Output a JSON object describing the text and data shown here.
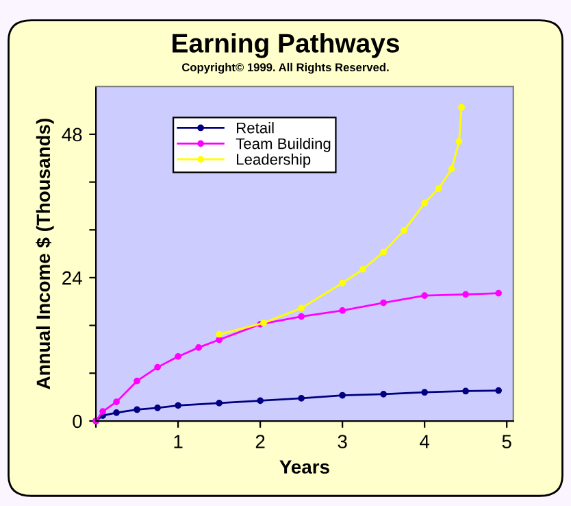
{
  "chart_data": {
    "type": "line",
    "title": "Earning Pathways",
    "annotations": [
      "Copyright© 1999. All Rights Reserved."
    ],
    "xlabel": "Years",
    "ylabel": "Annual Income $ (Thousands)",
    "xlim": [
      0,
      5.08
    ],
    "xticks": [
      {
        "value": 0,
        "label": null
      },
      1,
      2,
      3,
      4,
      5
    ],
    "ylim": [
      0,
      56
    ],
    "yticks": [
      0,
      {
        "value": 8,
        "label": null
      },
      {
        "value": 16,
        "label": null
      },
      24,
      {
        "value": 32,
        "label": null
      },
      {
        "value": 40,
        "label": null
      },
      48
    ],
    "grid": false,
    "legend": "top",
    "marker": "circle",
    "series": [
      {
        "name": "Retail",
        "color": "#000080",
        "x": [
          0,
          0.083,
          0.25,
          0.5,
          0.75,
          1,
          1.5,
          2,
          2.5,
          3,
          3.5,
          4,
          4.5,
          4.9
        ],
        "values": [
          0,
          0.9,
          1.4,
          1.9,
          2.2,
          2.6,
          3.0,
          3.4,
          3.8,
          4.3,
          4.5,
          4.8,
          5.0,
          5.1
        ]
      },
      {
        "name": "Team Building",
        "color": "#ff00ff",
        "x": [
          0,
          0.083,
          0.25,
          0.5,
          0.75,
          1,
          1.25,
          1.5,
          2,
          2.5,
          3,
          3.5,
          4,
          4.5,
          4.9
        ],
        "values": [
          0,
          1.6,
          3.2,
          6.7,
          9.0,
          10.8,
          12.3,
          13.6,
          16.2,
          17.5,
          18.5,
          19.8,
          21.0,
          21.2,
          21.4
        ]
      },
      {
        "name": "Leadership",
        "color": "#ffff00",
        "x": [
          1.5,
          2.04,
          2.5,
          3,
          3.25,
          3.5,
          3.75,
          4,
          4.17,
          4.33,
          4.42,
          4.45
        ],
        "values": [
          14.5,
          16.4,
          18.9,
          23.1,
          25.4,
          28.3,
          31.9,
          36.5,
          38.9,
          42.2,
          46.8,
          52.5
        ]
      }
    ]
  }
}
